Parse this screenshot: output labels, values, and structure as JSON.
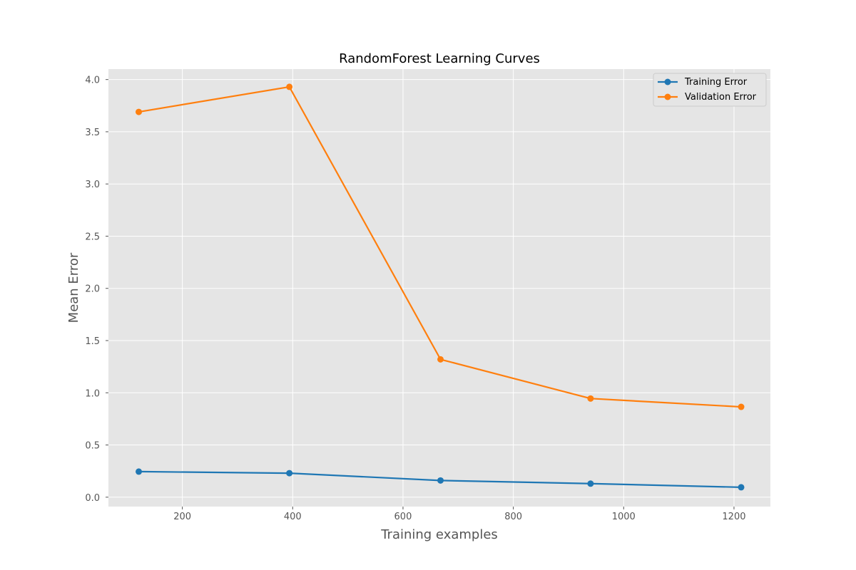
{
  "chart_data": {
    "type": "line",
    "title": "RandomForest Learning Curves",
    "xlabel": "Training examples",
    "ylabel": "Mean Error",
    "xlim": [
      66,
      1266
    ],
    "ylim": [
      -0.09,
      4.1
    ],
    "xticks": [
      200,
      400,
      600,
      800,
      1000,
      1200
    ],
    "yticks": [
      0.0,
      0.5,
      1.0,
      1.5,
      2.0,
      2.5,
      3.0,
      3.5,
      4.0
    ],
    "xtick_labels": [
      "200",
      "400",
      "600",
      "800",
      "1000",
      "1200"
    ],
    "ytick_labels": [
      "0.0",
      "0.5",
      "1.0",
      "1.5",
      "2.0",
      "2.5",
      "3.0",
      "3.5",
      "4.0"
    ],
    "grid": true,
    "legend_position": "top-right",
    "x": [
      121,
      394,
      668,
      940,
      1213
    ],
    "series": [
      {
        "name": "Training Error",
        "color": "#1f77b4",
        "values": [
          0.245,
          0.23,
          0.16,
          0.13,
          0.095
        ]
      },
      {
        "name": "Validation Error",
        "color": "#ff7f0e",
        "values": [
          3.69,
          3.93,
          1.32,
          0.945,
          0.865
        ]
      }
    ]
  },
  "colors": {
    "plot_background": "#e5e5e5",
    "grid": "#ffffff",
    "text": "#555555"
  }
}
